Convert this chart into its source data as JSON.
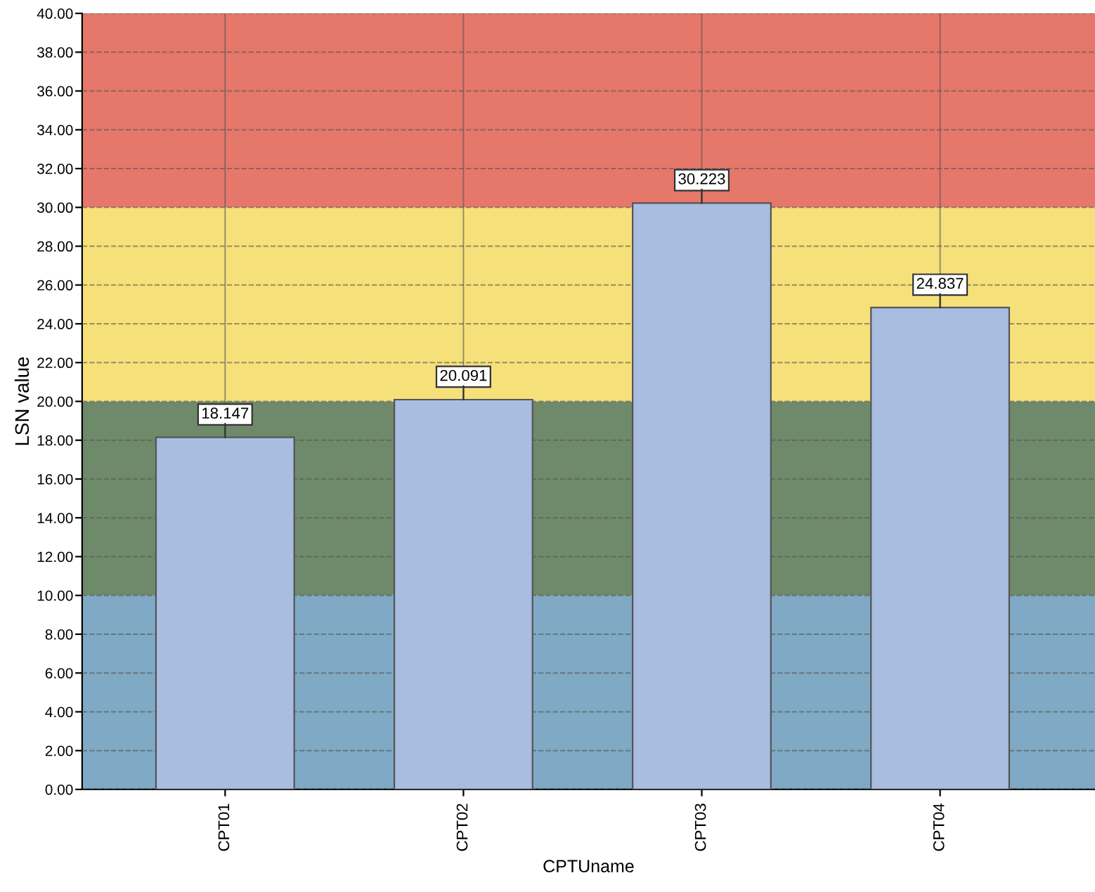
{
  "chart_data": {
    "type": "bar",
    "xlabel": "CPTUname",
    "ylabel": "LSN value",
    "categories": [
      "CPT01",
      "CPT02",
      "CPT03",
      "CPT04"
    ],
    "values": [
      18.147,
      20.091,
      30.223,
      24.837
    ],
    "color": "#a9bde0",
    "data_labels": true,
    "ylim": [
      0,
      40
    ],
    "yticks": [
      {
        "value": 0,
        "label": "0.00"
      },
      {
        "value": 2,
        "label": "2.00"
      },
      {
        "value": 4,
        "label": "4.00"
      },
      {
        "value": 6,
        "label": "6.00"
      },
      {
        "value": 8,
        "label": "8.00"
      },
      {
        "value": 10,
        "label": "10.00"
      },
      {
        "value": 12,
        "label": "12.00"
      },
      {
        "value": 14,
        "label": "14.00"
      },
      {
        "value": 16,
        "label": "16.00"
      },
      {
        "value": 18,
        "label": "18.00"
      },
      {
        "value": 20,
        "label": "20.00"
      },
      {
        "value": 22,
        "label": "22.00"
      },
      {
        "value": 24,
        "label": "24.00"
      },
      {
        "value": 26,
        "label": "26.00"
      },
      {
        "value": 28,
        "label": "28.00"
      },
      {
        "value": 30,
        "label": "30.00"
      },
      {
        "value": 32,
        "label": "32.00"
      },
      {
        "value": 34,
        "label": "34.00"
      },
      {
        "value": 36,
        "label": "36.00"
      },
      {
        "value": 38,
        "label": "38.00"
      },
      {
        "value": 40,
        "label": "40.00"
      }
    ],
    "bands": [
      {
        "axis": "y",
        "from": 0,
        "to": 10,
        "color": "#7fa9c4"
      },
      {
        "axis": "y",
        "from": 10,
        "to": 20,
        "color": "#6f8a6a"
      },
      {
        "axis": "y",
        "from": 20,
        "to": 30,
        "color": "#f6e07a"
      },
      {
        "axis": "y",
        "from": 30,
        "to": 40,
        "color": "#e5786a"
      }
    ],
    "grid": true,
    "legend": false
  }
}
